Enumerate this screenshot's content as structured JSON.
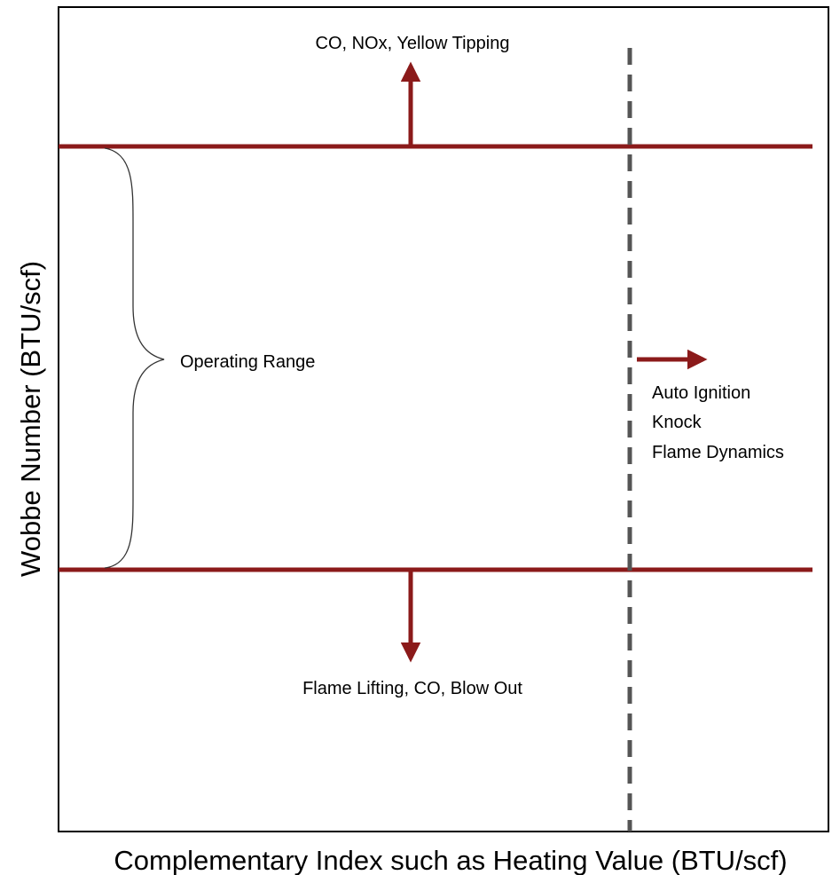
{
  "axes": {
    "x_label": "Complementary Index such as Heating Value (BTU/scf)",
    "y_label": "Wobbe Number (BTU/scf)"
  },
  "regions": {
    "above_upper_limit": "CO, NOx, Yellow Tipping",
    "operating_range": "Operating Range",
    "below_lower_limit": "Flame Lifting, CO, Blow Out",
    "right_of_threshold": [
      "Auto Ignition",
      "Knock",
      "Flame Dynamics"
    ]
  },
  "colors": {
    "limit_line": "#8b1a1a",
    "threshold_line": "#555555",
    "frame": "#000000",
    "brace": "#333333"
  }
}
